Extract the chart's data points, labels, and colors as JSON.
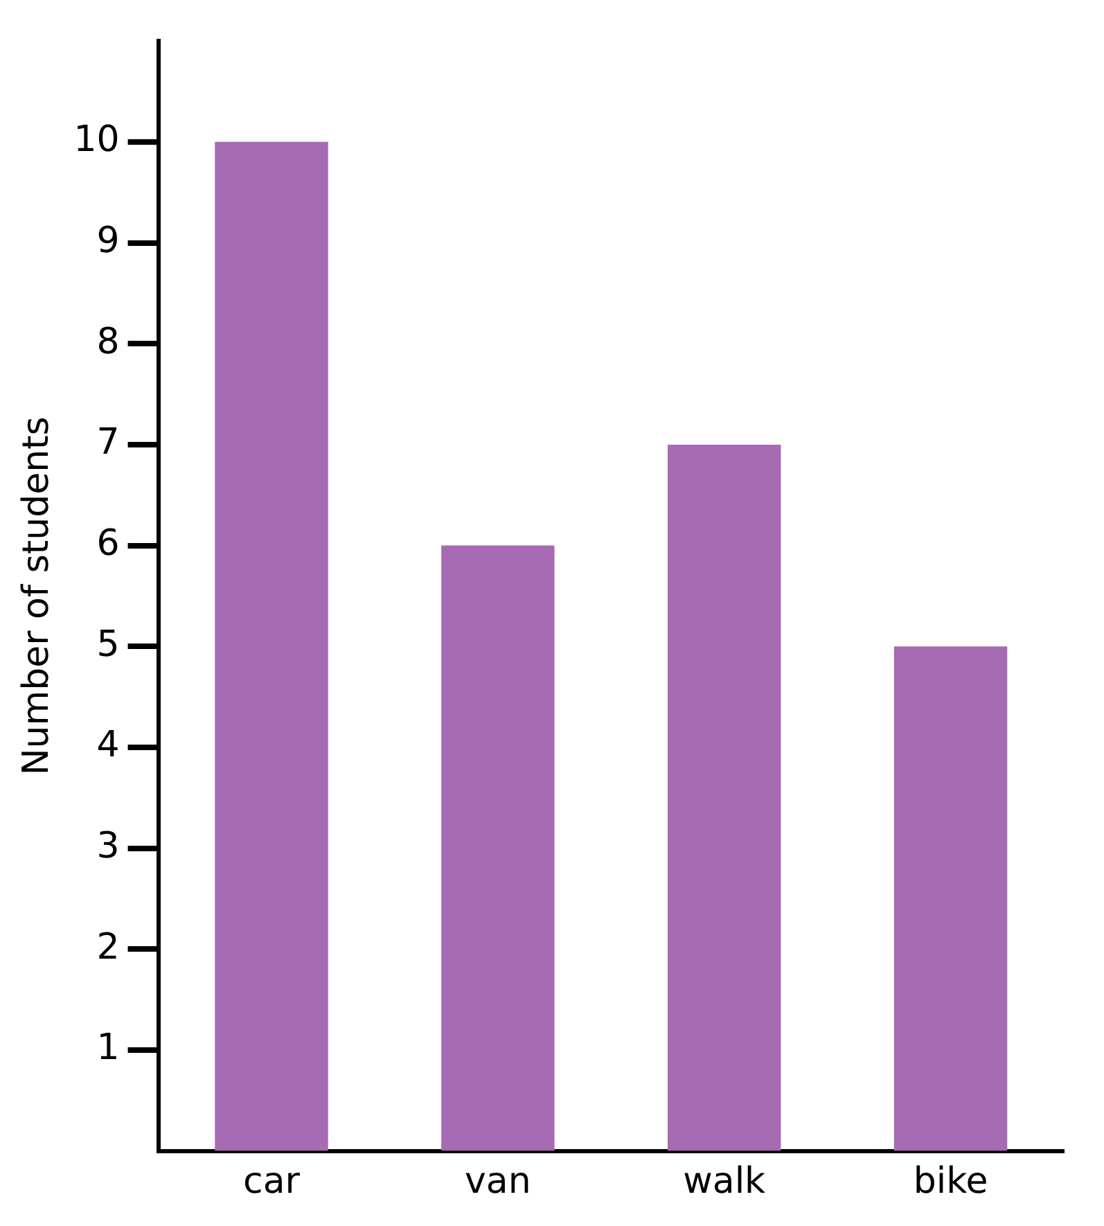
{
  "chart_data": {
    "type": "bar",
    "ylabel": "Number of students",
    "categories": [
      "car",
      "van",
      "walk",
      "bike"
    ],
    "values": [
      10,
      6,
      7,
      5
    ],
    "color": "#a66bb2",
    "ylim": [
      0,
      11
    ],
    "yticks": [
      1,
      2,
      3,
      4,
      5,
      6,
      7,
      8,
      9,
      10
    ],
    "grid": false
  }
}
